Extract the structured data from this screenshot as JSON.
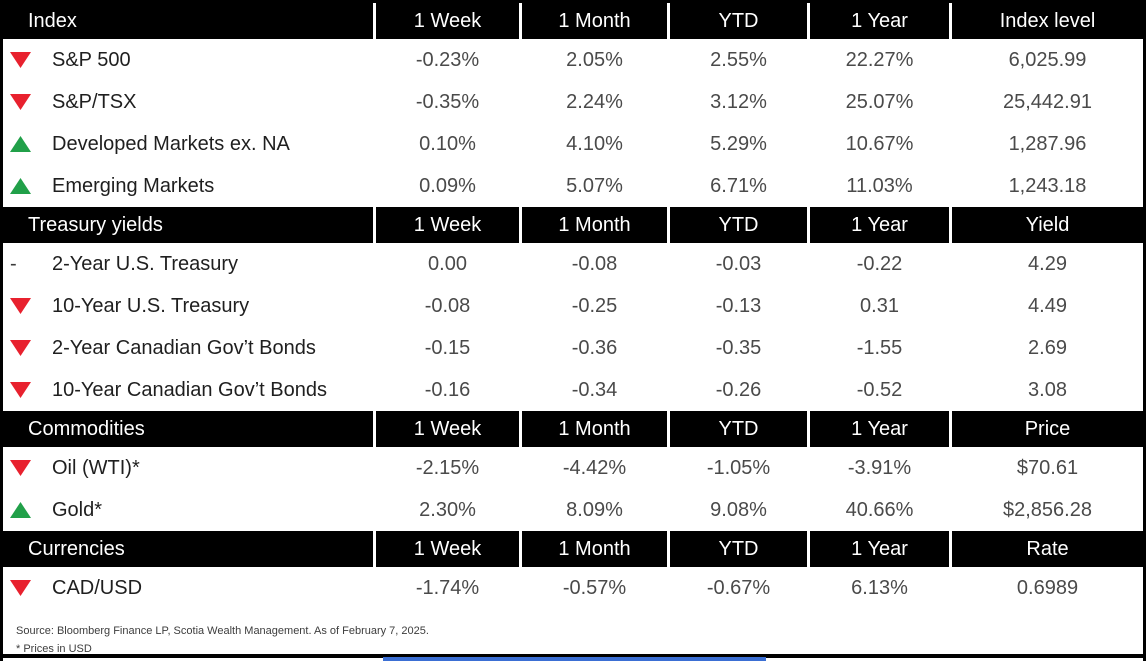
{
  "colors": {
    "header_bg": "#000000",
    "header_text": "#ffffff",
    "up_green": "#21a049",
    "down_red": "#e8212e",
    "label_text": "#1f1f1f",
    "value_text": "#4a4a4a",
    "bottom_bar_blue": "#3b6fd4"
  },
  "glyphs": {
    "up": "▲",
    "down": "▼",
    "flat": "-"
  },
  "sections": [
    {
      "header": {
        "label": "Index",
        "cols": [
          "1 Week",
          "1 Month",
          "YTD",
          "1 Year",
          "Index level"
        ]
      },
      "rows": [
        {
          "direction": "down",
          "label": "S&P 500",
          "values": [
            "-0.23%",
            "2.05%",
            "2.55%",
            "22.27%",
            "6,025.99"
          ]
        },
        {
          "direction": "down",
          "label": "S&P/TSX",
          "values": [
            "-0.35%",
            "2.24%",
            "3.12%",
            "25.07%",
            "25,442.91"
          ]
        },
        {
          "direction": "up",
          "label": "Developed Markets ex. NA",
          "values": [
            "0.10%",
            "4.10%",
            "5.29%",
            "10.67%",
            "1,287.96"
          ]
        },
        {
          "direction": "up",
          "label": "Emerging Markets",
          "values": [
            "0.09%",
            "5.07%",
            "6.71%",
            "11.03%",
            "1,243.18"
          ]
        }
      ]
    },
    {
      "header": {
        "label": "Treasury yields",
        "cols": [
          "1 Week",
          "1 Month",
          "YTD",
          "1 Year",
          "Yield"
        ]
      },
      "rows": [
        {
          "direction": "flat",
          "label": "2-Year U.S. Treasury",
          "values": [
            "0.00",
            "-0.08",
            "-0.03",
            "-0.22",
            "4.29"
          ]
        },
        {
          "direction": "down",
          "label": "10-Year U.S. Treasury",
          "values": [
            "-0.08",
            "-0.25",
            "-0.13",
            "0.31",
            "4.49"
          ]
        },
        {
          "direction": "down",
          "label": "2-Year Canadian Gov’t Bonds",
          "values": [
            "-0.15",
            "-0.36",
            "-0.35",
            "-1.55",
            "2.69"
          ]
        },
        {
          "direction": "down",
          "label": "10-Year Canadian Gov’t Bonds",
          "values": [
            "-0.16",
            "-0.34",
            "-0.26",
            "-0.52",
            "3.08"
          ]
        }
      ]
    },
    {
      "header": {
        "label": "Commodities",
        "cols": [
          "1 Week",
          "1 Month",
          "YTD",
          "1 Year",
          "Price"
        ]
      },
      "rows": [
        {
          "direction": "down",
          "label": "Oil (WTI)*",
          "values": [
            "-2.15%",
            "-4.42%",
            "-1.05%",
            "-3.91%",
            "$70.61"
          ]
        },
        {
          "direction": "up",
          "label": "Gold*",
          "values": [
            "2.30%",
            "8.09%",
            "9.08%",
            "40.66%",
            "$2,856.28"
          ]
        }
      ]
    },
    {
      "header": {
        "label": "Currencies",
        "cols": [
          "1 Week",
          "1 Month",
          "YTD",
          "1 Year",
          "Rate"
        ]
      },
      "rows": [
        {
          "direction": "down",
          "label": "CAD/USD",
          "values": [
            "-1.74%",
            "-0.57%",
            "-0.67%",
            "6.13%",
            "0.6989"
          ]
        }
      ]
    }
  ],
  "footer": {
    "source_line": "Source: Bloomberg Finance LP, Scotia Wealth Management. As of February 7, 2025.",
    "note_line": "* Prices in USD"
  }
}
